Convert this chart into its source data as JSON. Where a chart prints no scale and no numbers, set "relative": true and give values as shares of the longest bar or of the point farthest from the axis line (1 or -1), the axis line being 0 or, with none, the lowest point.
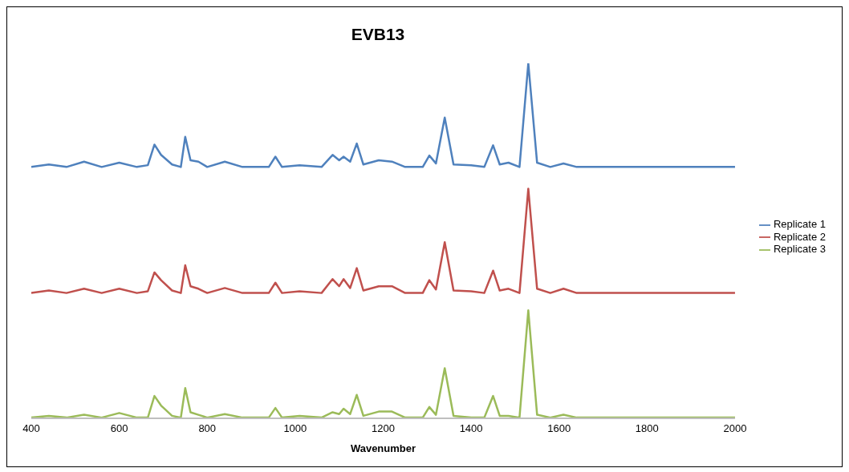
{
  "chart_data": {
    "type": "line",
    "title": "EVB13",
    "xlabel": "Wavenumber",
    "relative": true,
    "legend": "right",
    "grid": false,
    "xlim": [
      400,
      2000
    ],
    "xticks": [
      400,
      600,
      800,
      1000,
      1200,
      1400,
      1600,
      1800,
      2000
    ],
    "x": [
      400,
      440,
      480,
      520,
      560,
      600,
      640,
      665,
      680,
      695,
      720,
      740,
      750,
      762,
      780,
      800,
      840,
      880,
      940,
      955,
      970,
      1010,
      1060,
      1085,
      1100,
      1110,
      1125,
      1140,
      1155,
      1190,
      1220,
      1250,
      1290,
      1305,
      1320,
      1340,
      1360,
      1400,
      1430,
      1450,
      1465,
      1485,
      1510,
      1530,
      1550,
      1580,
      1610,
      1640,
      1700,
      1800,
      1900,
      2000
    ],
    "series": [
      {
        "name": "Replicate 1",
        "color": "#4f81bd",
        "values": [
          0.708,
          0.715,
          0.708,
          0.723,
          0.708,
          0.72,
          0.708,
          0.713,
          0.771,
          0.742,
          0.715,
          0.708,
          0.793,
          0.727,
          0.723,
          0.708,
          0.723,
          0.708,
          0.708,
          0.737,
          0.708,
          0.713,
          0.708,
          0.742,
          0.727,
          0.737,
          0.723,
          0.774,
          0.715,
          0.727,
          0.723,
          0.708,
          0.708,
          0.74,
          0.718,
          0.847,
          0.715,
          0.713,
          0.708,
          0.769,
          0.715,
          0.72,
          0.708,
          1.0,
          0.72,
          0.708,
          0.718,
          0.708,
          0.708,
          0.708,
          0.708,
          0.708
        ]
      },
      {
        "name": "Replicate 2",
        "color": "#c0504d",
        "values": [
          0.353,
          0.36,
          0.353,
          0.365,
          0.353,
          0.365,
          0.353,
          0.358,
          0.411,
          0.389,
          0.36,
          0.353,
          0.431,
          0.372,
          0.365,
          0.353,
          0.367,
          0.353,
          0.353,
          0.382,
          0.353,
          0.358,
          0.353,
          0.392,
          0.372,
          0.392,
          0.367,
          0.423,
          0.36,
          0.372,
          0.372,
          0.353,
          0.353,
          0.389,
          0.363,
          0.496,
          0.36,
          0.358,
          0.353,
          0.416,
          0.36,
          0.365,
          0.353,
          0.647,
          0.365,
          0.353,
          0.365,
          0.353,
          0.353,
          0.353,
          0.353,
          0.353
        ]
      },
      {
        "name": "Replicate 3",
        "color": "#9bbb59",
        "values": [
          0.002,
          0.007,
          0.002,
          0.01,
          0.002,
          0.015,
          0.002,
          0.002,
          0.063,
          0.036,
          0.007,
          0.002,
          0.085,
          0.017,
          0.01,
          0.002,
          0.012,
          0.002,
          0.002,
          0.029,
          0.002,
          0.007,
          0.002,
          0.017,
          0.012,
          0.027,
          0.012,
          0.066,
          0.007,
          0.019,
          0.019,
          0.002,
          0.002,
          0.032,
          0.01,
          0.141,
          0.007,
          0.002,
          0.002,
          0.063,
          0.007,
          0.007,
          0.002,
          0.304,
          0.01,
          0.002,
          0.01,
          0.002,
          0.002,
          0.002,
          0.002,
          0.002
        ]
      }
    ]
  }
}
